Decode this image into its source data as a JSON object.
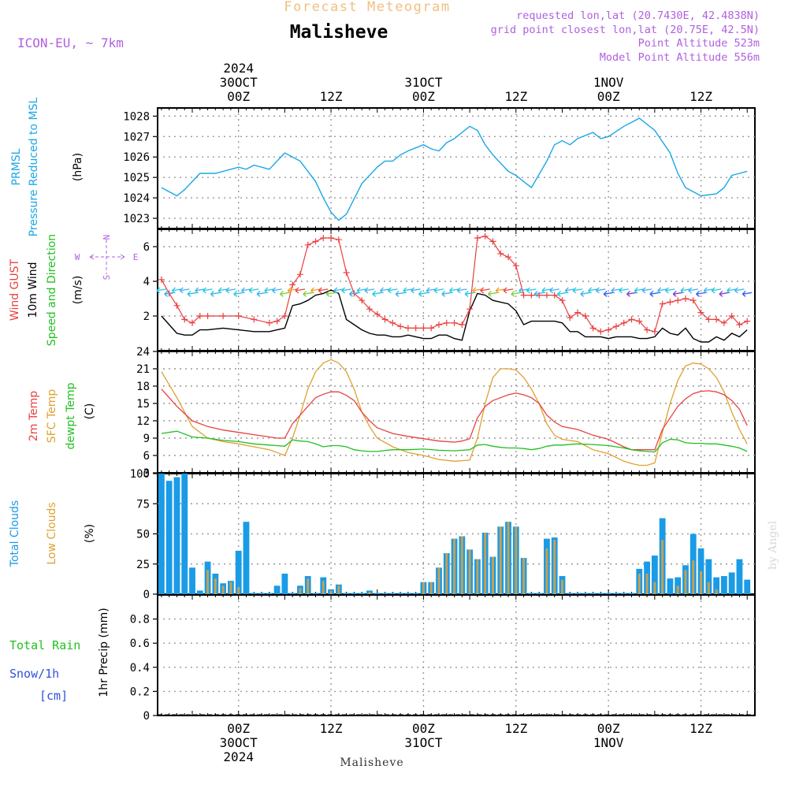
{
  "header": {
    "forecast_title": "Forecast Meteogram",
    "location": "Malisheve",
    "model": "ICON-EU, ~ 7km",
    "requested": "requested lon,lat (20.7430E, 42.4838N)",
    "gridpoint": "grid point closest lon,lat (20.75E, 42.5N)",
    "point_alt": "Point Altitude 523m",
    "model_alt": "Model Point Altitude 556m",
    "footer_location": "Malisheve",
    "credit": "by Angel"
  },
  "time_axis": {
    "top_labels": [
      {
        "h": 24,
        "lines": [
          "2024",
          "30OCT",
          "00Z"
        ]
      },
      {
        "h": 36,
        "lines": [
          "12Z"
        ]
      },
      {
        "h": 48,
        "lines": [
          "31OCT",
          "00Z"
        ]
      },
      {
        "h": 60,
        "lines": [
          "12Z"
        ]
      },
      {
        "h": 72,
        "lines": [
          "1NOV",
          "00Z"
        ]
      },
      {
        "h": 84,
        "lines": [
          "12Z"
        ]
      }
    ],
    "bottom_labels": [
      {
        "h": 24,
        "lines": [
          "00Z",
          "30OCT",
          "2024"
        ]
      },
      {
        "h": 36,
        "lines": [
          "12Z"
        ]
      },
      {
        "h": 48,
        "lines": [
          "00Z",
          "31OCT"
        ]
      },
      {
        "h": 60,
        "lines": [
          "12Z"
        ]
      },
      {
        "h": 72,
        "lines": [
          "00Z",
          "1NOV"
        ]
      },
      {
        "h": 84,
        "lines": [
          "12Z"
        ]
      }
    ]
  },
  "panel_labels": {
    "pressure": [
      "PRMSL",
      "Pressure Reduced to MSL",
      "(hPa)"
    ],
    "wind": [
      "Wind GUST",
      "10m Wind",
      "Speed and Direction",
      "(m/s)"
    ],
    "compass": {
      "n": "N",
      "s": "S",
      "w": "W",
      "e": "E"
    },
    "temp": [
      "2m Temp",
      "SFC Temp",
      "dewpt Temp",
      "(C)"
    ],
    "clouds": [
      "Total Clouds",
      "Low Clouds",
      "(%)"
    ],
    "precip": [
      "Total  Rain",
      "Snow/1h",
      "[cm]",
      "1hr Precip (mm)"
    ]
  },
  "colors": {
    "pressure": "#1aa7e8",
    "gust": "#e84040",
    "wind": "#000000",
    "t2m": "#e84040",
    "sfc": "#e0a030",
    "dewpt": "#20c020",
    "total_clouds": "#1a9be6",
    "low_clouds": "#c8a050",
    "rain": "#20c020",
    "snow": "#3050e0",
    "header_orange": "#f0c080",
    "purple": "#b060e0"
  },
  "chart_data": [
    {
      "type": "line",
      "name": "pressure",
      "ylim": [
        1022.5,
        1028.4
      ],
      "yticks": [
        1023,
        1024,
        1025,
        1026,
        1027,
        1028
      ],
      "x": [
        14,
        16,
        17,
        19,
        21,
        23,
        24,
        25,
        26,
        28,
        29,
        30,
        32,
        34,
        35,
        36,
        37,
        38,
        40,
        42,
        43,
        44,
        45,
        46,
        48,
        49,
        50,
        51,
        52,
        54,
        55,
        56,
        57,
        58,
        59,
        60,
        61,
        62,
        64,
        65,
        66,
        67,
        68,
        70,
        71,
        72,
        74,
        75,
        76,
        78,
        80,
        81,
        82,
        84,
        86,
        87,
        88,
        89,
        90
      ],
      "series": [
        {
          "values": [
            1024.5,
            1024.1,
            1024.4,
            1025.2,
            1025.2,
            1025.4,
            1025.5,
            1025.4,
            1025.6,
            1025.4,
            1025.8,
            1026.2,
            1025.8,
            1024.8,
            1024.0,
            1023.3,
            1022.9,
            1023.2,
            1024.7,
            1025.5,
            1025.8,
            1025.8,
            1026.1,
            1026.3,
            1026.6,
            1026.4,
            1026.3,
            1026.7,
            1026.9,
            1027.5,
            1027.3,
            1026.6,
            1026.1,
            1025.7,
            1025.3,
            1025.1,
            1024.8,
            1024.5,
            1025.8,
            1026.6,
            1026.8,
            1026.6,
            1026.9,
            1027.2,
            1026.9,
            1027.0,
            1027.5,
            1027.7,
            1027.9,
            1027.3,
            1026.2,
            1025.2,
            1024.5,
            1024.1,
            1024.2,
            1024.5,
            1025.1,
            1025.2,
            1025.3
          ]
        }
      ]
    },
    {
      "type": "line",
      "name": "wind",
      "ylim": [
        0,
        7
      ],
      "yticks": [
        2,
        4,
        6
      ],
      "x": [
        14,
        15,
        16,
        17,
        18,
        19,
        20,
        22,
        24,
        26,
        28,
        29,
        30,
        31,
        32,
        33,
        34,
        35,
        36,
        37,
        38,
        39,
        40,
        41,
        42,
        43,
        44,
        45,
        46,
        47,
        48,
        49,
        50,
        51,
        52,
        53,
        54,
        55,
        56,
        57,
        58,
        59,
        60,
        61,
        62,
        63,
        64,
        65,
        66,
        67,
        68,
        69,
        70,
        71,
        72,
        73,
        74,
        75,
        76,
        77,
        78,
        79,
        80,
        81,
        82,
        83,
        84,
        85,
        86,
        87,
        88,
        89,
        90
      ],
      "series": [
        {
          "name": "Wind GUST",
          "values": [
            4.1,
            3.3,
            2.6,
            1.8,
            1.6,
            2.0,
            2.0,
            2.0,
            2.0,
            1.8,
            1.6,
            1.7,
            2.0,
            3.8,
            4.4,
            6.1,
            6.3,
            6.5,
            6.5,
            6.4,
            4.5,
            3.3,
            2.9,
            2.4,
            2.1,
            1.8,
            1.6,
            1.4,
            1.3,
            1.3,
            1.3,
            1.3,
            1.5,
            1.6,
            1.6,
            1.5,
            2.4,
            6.5,
            6.6,
            6.3,
            5.6,
            5.4,
            4.9,
            3.2,
            3.2,
            3.2,
            3.2,
            3.2,
            2.9,
            1.9,
            2.2,
            2.0,
            1.3,
            1.1,
            1.2,
            1.4,
            1.6,
            1.8,
            1.7,
            1.2,
            1.1,
            2.7,
            2.8,
            2.9,
            3.0,
            2.9,
            2.2,
            1.8,
            1.8,
            1.6,
            2.0,
            1.5,
            1.7
          ]
        },
        {
          "name": "10m Wind",
          "values": [
            2.0,
            1.5,
            1.0,
            0.9,
            0.9,
            1.2,
            1.2,
            1.3,
            1.2,
            1.1,
            1.1,
            1.2,
            1.3,
            2.6,
            2.7,
            2.9,
            3.2,
            3.3,
            3.5,
            3.3,
            1.8,
            1.5,
            1.2,
            1.0,
            0.9,
            0.9,
            0.8,
            0.8,
            0.9,
            0.8,
            0.7,
            0.7,
            0.9,
            0.9,
            0.7,
            0.6,
            2.3,
            3.3,
            3.2,
            2.9,
            2.8,
            2.7,
            2.3,
            1.5,
            1.7,
            1.7,
            1.7,
            1.7,
            1.6,
            1.1,
            1.1,
            0.8,
            0.8,
            0.8,
            0.7,
            0.8,
            0.8,
            0.8,
            0.7,
            0.7,
            0.8,
            1.3,
            1.0,
            0.9,
            1.3,
            0.7,
            0.5,
            0.5,
            0.8,
            0.6,
            1.0,
            0.8,
            1.2
          ]
        }
      ]
    },
    {
      "type": "line",
      "name": "temperature",
      "ylim": [
        3,
        24
      ],
      "yticks": [
        3,
        6,
        9,
        12,
        15,
        18,
        21,
        24
      ],
      "x": [
        14,
        16,
        18,
        20,
        22,
        24,
        26,
        28,
        29,
        30,
        31,
        32,
        33,
        34,
        35,
        36,
        37,
        38,
        39,
        40,
        41,
        42,
        44,
        46,
        48,
        50,
        52,
        53,
        54,
        55,
        56,
        57,
        58,
        59,
        60,
        61,
        62,
        63,
        64,
        65,
        66,
        68,
        70,
        72,
        74,
        75,
        76,
        77,
        78,
        79,
        80,
        81,
        82,
        83,
        84,
        85,
        86,
        87,
        88,
        89,
        90
      ],
      "series": [
        {
          "name": "2m Temp",
          "values": [
            17.5,
            14.5,
            12.0,
            11.0,
            10.4,
            10.0,
            9.6,
            9.2,
            9.0,
            9.0,
            11.5,
            13.0,
            14.5,
            16.0,
            16.6,
            17.0,
            17.0,
            16.4,
            15.5,
            13.5,
            12.0,
            10.8,
            9.8,
            9.3,
            8.9,
            8.5,
            8.3,
            8.5,
            8.9,
            12.5,
            14.5,
            15.5,
            16.0,
            16.5,
            16.8,
            16.5,
            16.0,
            15.0,
            13.0,
            11.8,
            11.0,
            10.5,
            9.5,
            8.8,
            7.5,
            7.0,
            7.0,
            7.0,
            7.0,
            10.5,
            12.5,
            14.5,
            15.8,
            16.7,
            17.1,
            17.2,
            17.0,
            16.5,
            15.5,
            14.0,
            11.2
          ]
        },
        {
          "name": "SFC Temp",
          "values": [
            20.5,
            16.0,
            11.0,
            9.0,
            8.4,
            8.0,
            7.5,
            7.0,
            6.5,
            6.0,
            9.0,
            13.0,
            17.5,
            20.5,
            22.0,
            22.6,
            22.0,
            20.5,
            17.5,
            13.5,
            11.0,
            9.0,
            7.5,
            6.5,
            6.0,
            5.3,
            5.0,
            5.1,
            5.2,
            9.0,
            15.0,
            19.5,
            21.0,
            21.0,
            20.8,
            19.5,
            17.5,
            15.0,
            11.5,
            9.5,
            8.8,
            8.4,
            7.0,
            6.3,
            5.0,
            4.6,
            4.3,
            4.3,
            4.7,
            10.0,
            15.0,
            19.0,
            21.5,
            22.0,
            21.8,
            21.0,
            19.5,
            17.0,
            13.5,
            10.5,
            8.0
          ]
        },
        {
          "name": "dewpt Temp",
          "values": [
            9.8,
            10.2,
            9.2,
            9.0,
            8.6,
            8.4,
            8.0,
            7.8,
            7.7,
            7.6,
            8.7,
            8.5,
            8.4,
            8.0,
            7.5,
            7.7,
            7.7,
            7.5,
            7.0,
            6.8,
            6.7,
            6.7,
            7.0,
            7.0,
            7.1,
            6.9,
            6.8,
            6.9,
            7.0,
            7.8,
            7.9,
            7.6,
            7.4,
            7.3,
            7.3,
            7.2,
            7.0,
            7.2,
            7.6,
            7.8,
            7.8,
            8.0,
            7.9,
            7.7,
            7.3,
            7.0,
            6.8,
            6.7,
            6.6,
            8.2,
            8.8,
            8.7,
            8.2,
            8.1,
            8.1,
            8.0,
            8.0,
            7.8,
            7.6,
            7.3,
            6.7
          ]
        }
      ]
    },
    {
      "type": "bar",
      "name": "clouds",
      "ylim": [
        0,
        100
      ],
      "yticks": [
        0,
        25,
        50,
        75,
        100
      ],
      "x": [
        14,
        15,
        16,
        17,
        18,
        19,
        20,
        21,
        22,
        23,
        24,
        25,
        26,
        27,
        28,
        29,
        30,
        31,
        32,
        33,
        34,
        35,
        36,
        37,
        38,
        39,
        40,
        41,
        42,
        43,
        44,
        45,
        46,
        47,
        48,
        49,
        50,
        51,
        52,
        53,
        54,
        55,
        56,
        57,
        58,
        59,
        60,
        61,
        62,
        63,
        64,
        65,
        66,
        67,
        68,
        69,
        70,
        71,
        72,
        73,
        74,
        75,
        76,
        77,
        78,
        79,
        80,
        81,
        82,
        83,
        84,
        85,
        86,
        87,
        88,
        89,
        90
      ],
      "series": [
        {
          "name": "Total Clouds",
          "values": [
            100,
            94,
            97,
            100,
            22,
            3,
            27,
            17,
            9,
            11,
            36,
            60,
            1,
            1,
            1,
            7,
            17,
            1,
            7,
            15,
            1,
            14,
            4,
            8,
            1,
            1,
            1,
            3,
            1,
            1,
            1,
            1,
            1,
            1,
            10,
            10,
            22,
            34,
            46,
            48,
            37,
            29,
            51,
            31,
            56,
            60,
            56,
            30,
            1,
            1,
            46,
            47,
            15,
            1,
            1,
            1,
            1,
            1,
            1,
            1,
            1,
            1,
            21,
            27,
            32,
            63,
            13,
            14,
            24,
            50,
            38,
            29,
            14,
            15,
            18,
            29,
            12
          ]
        },
        {
          "name": "Low Clouds",
          "values": [
            0,
            0,
            0,
            0,
            0,
            0,
            20,
            13,
            7,
            10,
            6,
            0,
            0,
            0,
            0,
            0,
            0,
            0,
            5,
            13,
            0,
            11,
            3,
            7,
            0,
            0,
            0,
            2,
            0,
            0,
            0,
            0,
            0,
            0,
            10,
            10,
            22,
            34,
            46,
            48,
            37,
            29,
            51,
            31,
            56,
            60,
            56,
            30,
            0,
            0,
            38,
            45,
            12,
            0,
            0,
            0,
            0,
            0,
            0,
            0,
            0,
            0,
            17,
            17,
            10,
            45,
            0,
            7,
            20,
            28,
            19,
            10,
            4,
            0,
            0,
            0,
            0
          ]
        }
      ]
    },
    {
      "type": "bar",
      "name": "precip",
      "ylim": [
        0,
        1
      ],
      "yticks": [
        0,
        0.2,
        0.4,
        0.6,
        0.8
      ],
      "series": [
        {
          "name": "Total Rain",
          "values": []
        }
      ]
    }
  ]
}
